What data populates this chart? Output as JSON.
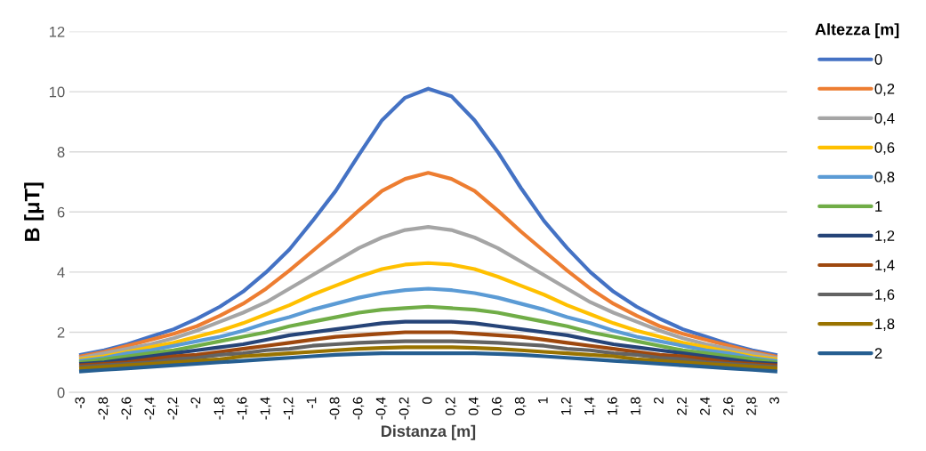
{
  "chart_data": {
    "type": "line",
    "xlabel": "Distanza [m]",
    "ylabel": "B [μT]",
    "legend_title": "Altezza [m]",
    "categories": [
      "-3",
      "-2,8",
      "-2,6",
      "-2,4",
      "-2,2",
      "-2",
      "-1,8",
      "-1,6",
      "-1,4",
      "-1,2",
      "-1",
      "-0,8",
      "-0,6",
      "-0,4",
      "-0,2",
      "0",
      "0,2",
      "0,4",
      "0,6",
      "0,8",
      "1",
      "1,2",
      "1,4",
      "1,6",
      "1,8",
      "2",
      "2,2",
      "2,4",
      "2,6",
      "2,8",
      "3"
    ],
    "ylim": [
      0,
      12
    ],
    "yticks": [
      0,
      2,
      4,
      6,
      8,
      10,
      12
    ],
    "grid": "y",
    "legend": "right",
    "marker": "none",
    "line_style": "solid",
    "series": [
      {
        "name": "0",
        "color": "#4472c4",
        "values": [
          1.25,
          1.4,
          1.6,
          1.85,
          2.1,
          2.45,
          2.85,
          3.35,
          4.0,
          4.75,
          5.7,
          6.7,
          7.9,
          9.05,
          9.8,
          10.1,
          9.85,
          9.05,
          8.0,
          6.8,
          5.7,
          4.8,
          4.0,
          3.35,
          2.85,
          2.45,
          2.1,
          1.85,
          1.6,
          1.4,
          1.25
        ]
      },
      {
        "name": "0,2",
        "color": "#ed7d31",
        "values": [
          1.2,
          1.35,
          1.55,
          1.75,
          1.95,
          2.2,
          2.55,
          2.95,
          3.45,
          4.05,
          4.7,
          5.35,
          6.05,
          6.7,
          7.1,
          7.3,
          7.1,
          6.7,
          6.05,
          5.35,
          4.7,
          4.05,
          3.45,
          2.95,
          2.55,
          2.2,
          1.95,
          1.75,
          1.55,
          1.35,
          1.2
        ]
      },
      {
        "name": "0,4",
        "color": "#a5a5a5",
        "values": [
          1.15,
          1.3,
          1.45,
          1.6,
          1.8,
          2.05,
          2.35,
          2.65,
          3.0,
          3.45,
          3.9,
          4.35,
          4.8,
          5.15,
          5.4,
          5.5,
          5.4,
          5.15,
          4.8,
          4.35,
          3.9,
          3.45,
          3.0,
          2.65,
          2.35,
          2.05,
          1.8,
          1.6,
          1.45,
          1.3,
          1.15
        ]
      },
      {
        "name": "0,6",
        "color": "#ffc000",
        "values": [
          1.1,
          1.2,
          1.35,
          1.5,
          1.65,
          1.85,
          2.05,
          2.3,
          2.6,
          2.9,
          3.25,
          3.55,
          3.85,
          4.1,
          4.25,
          4.3,
          4.25,
          4.1,
          3.85,
          3.55,
          3.25,
          2.9,
          2.6,
          2.3,
          2.05,
          1.85,
          1.65,
          1.5,
          1.35,
          1.2,
          1.1
        ]
      },
      {
        "name": "0,8",
        "color": "#5b9bd5",
        "values": [
          1.05,
          1.15,
          1.3,
          1.4,
          1.55,
          1.7,
          1.85,
          2.05,
          2.3,
          2.5,
          2.75,
          2.95,
          3.15,
          3.3,
          3.4,
          3.45,
          3.4,
          3.3,
          3.15,
          2.95,
          2.75,
          2.5,
          2.3,
          2.05,
          1.85,
          1.7,
          1.55,
          1.4,
          1.3,
          1.15,
          1.05
        ]
      },
      {
        "name": "1",
        "color": "#70ad47",
        "values": [
          1.0,
          1.1,
          1.2,
          1.3,
          1.4,
          1.55,
          1.7,
          1.85,
          2.0,
          2.2,
          2.35,
          2.5,
          2.65,
          2.75,
          2.8,
          2.85,
          2.8,
          2.75,
          2.65,
          2.5,
          2.35,
          2.2,
          2.0,
          1.85,
          1.7,
          1.55,
          1.4,
          1.3,
          1.2,
          1.1,
          1.0
        ]
      },
      {
        "name": "1,2",
        "color": "#264478",
        "values": [
          0.95,
          1.0,
          1.1,
          1.2,
          1.3,
          1.4,
          1.5,
          1.6,
          1.75,
          1.9,
          2.0,
          2.1,
          2.2,
          2.3,
          2.35,
          2.35,
          2.35,
          2.3,
          2.2,
          2.1,
          2.0,
          1.9,
          1.75,
          1.6,
          1.5,
          1.4,
          1.3,
          1.2,
          1.1,
          1.0,
          0.95
        ]
      },
      {
        "name": "1,4",
        "color": "#9e480e",
        "values": [
          0.9,
          0.95,
          1.0,
          1.1,
          1.2,
          1.25,
          1.35,
          1.45,
          1.55,
          1.65,
          1.75,
          1.85,
          1.9,
          1.95,
          2.0,
          2.0,
          2.0,
          1.95,
          1.9,
          1.85,
          1.75,
          1.65,
          1.55,
          1.45,
          1.35,
          1.25,
          1.2,
          1.1,
          1.0,
          0.95,
          0.9
        ]
      },
      {
        "name": "1,6",
        "color": "#636363",
        "values": [
          0.85,
          0.9,
          0.95,
          1.0,
          1.1,
          1.15,
          1.25,
          1.3,
          1.4,
          1.45,
          1.55,
          1.6,
          1.65,
          1.68,
          1.7,
          1.7,
          1.7,
          1.68,
          1.65,
          1.6,
          1.55,
          1.45,
          1.4,
          1.3,
          1.25,
          1.15,
          1.1,
          1.0,
          0.95,
          0.9,
          0.85
        ]
      },
      {
        "name": "1,8",
        "color": "#997300",
        "values": [
          0.8,
          0.85,
          0.9,
          0.95,
          1.0,
          1.05,
          1.1,
          1.2,
          1.25,
          1.3,
          1.35,
          1.4,
          1.45,
          1.48,
          1.5,
          1.5,
          1.5,
          1.48,
          1.45,
          1.4,
          1.35,
          1.3,
          1.25,
          1.2,
          1.1,
          1.05,
          1.0,
          0.95,
          0.9,
          0.85,
          0.8
        ]
      },
      {
        "name": "2",
        "color": "#255e91",
        "values": [
          0.7,
          0.75,
          0.8,
          0.85,
          0.9,
          0.95,
          1.0,
          1.05,
          1.1,
          1.15,
          1.2,
          1.25,
          1.28,
          1.3,
          1.3,
          1.3,
          1.3,
          1.3,
          1.28,
          1.25,
          1.2,
          1.15,
          1.1,
          1.05,
          1.0,
          0.95,
          0.9,
          0.85,
          0.8,
          0.75,
          0.7
        ]
      }
    ]
  }
}
